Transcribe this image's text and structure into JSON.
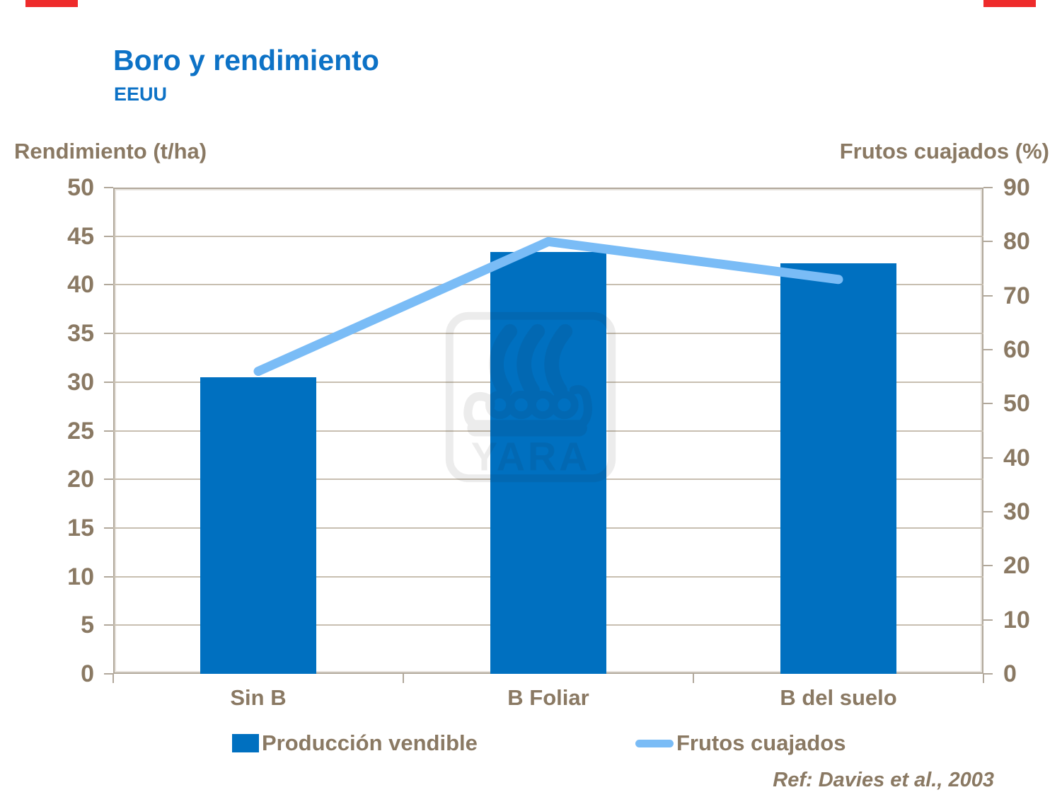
{
  "slide": {
    "title": "Boro y rendimiento",
    "subtitle": "EEUU",
    "reference": "Ref: Davies et al., 2003"
  },
  "chart_data": {
    "type": "bar",
    "subtype": "bar-and-line-combo",
    "categories": [
      "Sin B",
      "B Foliar",
      "B del suelo"
    ],
    "series": [
      {
        "name": "Producción vendible",
        "type": "bar",
        "axis": "left",
        "values": [
          30.5,
          43.4,
          42.2
        ],
        "color": "#0070C0"
      },
      {
        "name": "Frutos cuajados",
        "type": "line",
        "axis": "right",
        "values": [
          56,
          80,
          73
        ],
        "color": "#7ABCF6"
      }
    ],
    "left_axis": {
      "label": "Rendimiento (t/ha)",
      "min": 0,
      "max": 50,
      "step": 5,
      "ticks": [
        50,
        45,
        40,
        35,
        30,
        25,
        20,
        15,
        10,
        5,
        0
      ]
    },
    "right_axis": {
      "label": "Frutos cuajados (%)",
      "min": 0,
      "max": 90,
      "step": 10,
      "ticks": [
        90,
        80,
        70,
        60,
        50,
        40,
        30,
        20,
        10,
        0
      ]
    },
    "grid": true,
    "legend_position": "bottom"
  },
  "watermark": {
    "icon": "yara-viking-ship-logo",
    "text": "YARA"
  },
  "colors": {
    "title_blue": "#0D72C6",
    "bar_blue": "#0070C0",
    "line_blue": "#7ABCF6",
    "taupe": "#8A7963",
    "grid": "#C8BFB1",
    "axis_border": "#B1A89B",
    "red_mark": "#EE2B2B"
  }
}
